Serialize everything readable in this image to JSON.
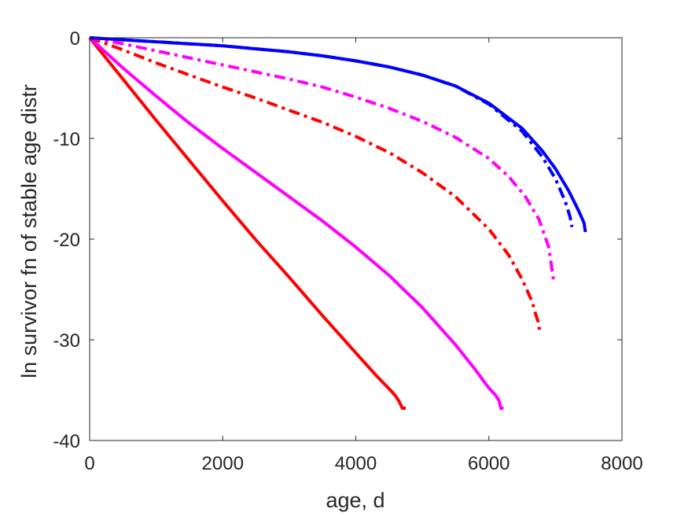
{
  "chart_data": {
    "type": "line",
    "title": "",
    "xlabel": "age, d",
    "ylabel": "ln survivor fn of stable age distr",
    "xlim": [
      0,
      8000
    ],
    "ylim": [
      -40,
      0
    ],
    "xticks": [
      0,
      2000,
      4000,
      6000,
      8000
    ],
    "yticks": [
      0,
      -10,
      -20,
      -30,
      -40
    ],
    "xtick_labels": [
      "0",
      "2000",
      "4000",
      "6000",
      "8000"
    ],
    "ytick_labels": [
      "0",
      "-10",
      "-20",
      "-30",
      "-40"
    ],
    "grid": false,
    "legend": "none",
    "series": [
      {
        "color": "#ff0000",
        "style": "solid",
        "x": [
          0,
          500,
          1000,
          1500,
          2000,
          2500,
          3000,
          3500,
          4000,
          4300,
          4550,
          4600,
          4650,
          4680,
          4700,
          4750
        ],
        "y": [
          0,
          -4.1,
          -8.2,
          -12.2,
          -16.2,
          -20.1,
          -23.8,
          -27.6,
          -31.3,
          -33.5,
          -35.2,
          -35.6,
          -36.1,
          -36.5,
          -36.8,
          -36.8
        ]
      },
      {
        "color": "#ff00ff",
        "style": "solid",
        "x": [
          0,
          500,
          1000,
          1500,
          2000,
          2500,
          3000,
          3500,
          4000,
          4500,
          5000,
          5500,
          5800,
          6000,
          6100,
          6150,
          6180,
          6220
        ],
        "y": [
          0,
          -3.0,
          -5.8,
          -8.5,
          -11.0,
          -13.4,
          -15.8,
          -18.2,
          -20.8,
          -23.6,
          -26.8,
          -30.5,
          -33.0,
          -34.8,
          -35.5,
          -36.0,
          -36.8,
          -36.8
        ]
      },
      {
        "color": "#ff0000",
        "style": "dashdot",
        "x": [
          0,
          500,
          1000,
          1500,
          2000,
          2500,
          3000,
          3500,
          4000,
          4500,
          5000,
          5500,
          6000,
          6300,
          6500,
          6650,
          6700,
          6740,
          6760
        ],
        "y": [
          0,
          -1.2,
          -2.5,
          -3.7,
          -4.9,
          -6.0,
          -7.2,
          -8.4,
          -9.8,
          -11.4,
          -13.4,
          -15.8,
          -19.0,
          -21.6,
          -24.0,
          -26.2,
          -27.4,
          -28.2,
          -29.0
        ]
      },
      {
        "color": "#ff00ff",
        "style": "dashdot",
        "x": [
          0,
          500,
          1000,
          1500,
          2000,
          2500,
          3000,
          3500,
          4000,
          4500,
          5000,
          5500,
          6000,
          6300,
          6550,
          6750,
          6900,
          6970
        ],
        "y": [
          0,
          -0.6,
          -1.3,
          -2.0,
          -2.7,
          -3.4,
          -4.1,
          -4.9,
          -5.9,
          -7.0,
          -8.3,
          -9.9,
          -12.0,
          -13.8,
          -15.8,
          -18.0,
          -20.8,
          -24.0
        ]
      },
      {
        "color": "#0000ff",
        "style": "solid",
        "x": [
          0,
          500,
          1000,
          1500,
          2000,
          2500,
          3000,
          3500,
          4000,
          4500,
          5000,
          5500,
          6000,
          6500,
          6800,
          7000,
          7200,
          7350,
          7430,
          7450
        ],
        "y": [
          0,
          -0.2,
          -0.4,
          -0.6,
          -0.8,
          -1.1,
          -1.4,
          -1.8,
          -2.3,
          -2.9,
          -3.7,
          -4.8,
          -6.5,
          -9.0,
          -11.2,
          -13.0,
          -15.2,
          -17.2,
          -18.4,
          -19.3
        ]
      },
      {
        "color": "#0000ff",
        "style": "dashdot",
        "x": [
          0,
          500,
          1000,
          1500,
          2000,
          2500,
          3000,
          3500,
          4000,
          4500,
          5000,
          5500,
          6000,
          6500,
          6800,
          7000,
          7150,
          7220,
          7250
        ],
        "y": [
          0,
          -0.2,
          -0.4,
          -0.6,
          -0.8,
          -1.1,
          -1.4,
          -1.8,
          -2.3,
          -2.9,
          -3.7,
          -4.8,
          -6.6,
          -9.3,
          -11.8,
          -14.0,
          -16.3,
          -17.8,
          -18.8
        ]
      }
    ]
  }
}
